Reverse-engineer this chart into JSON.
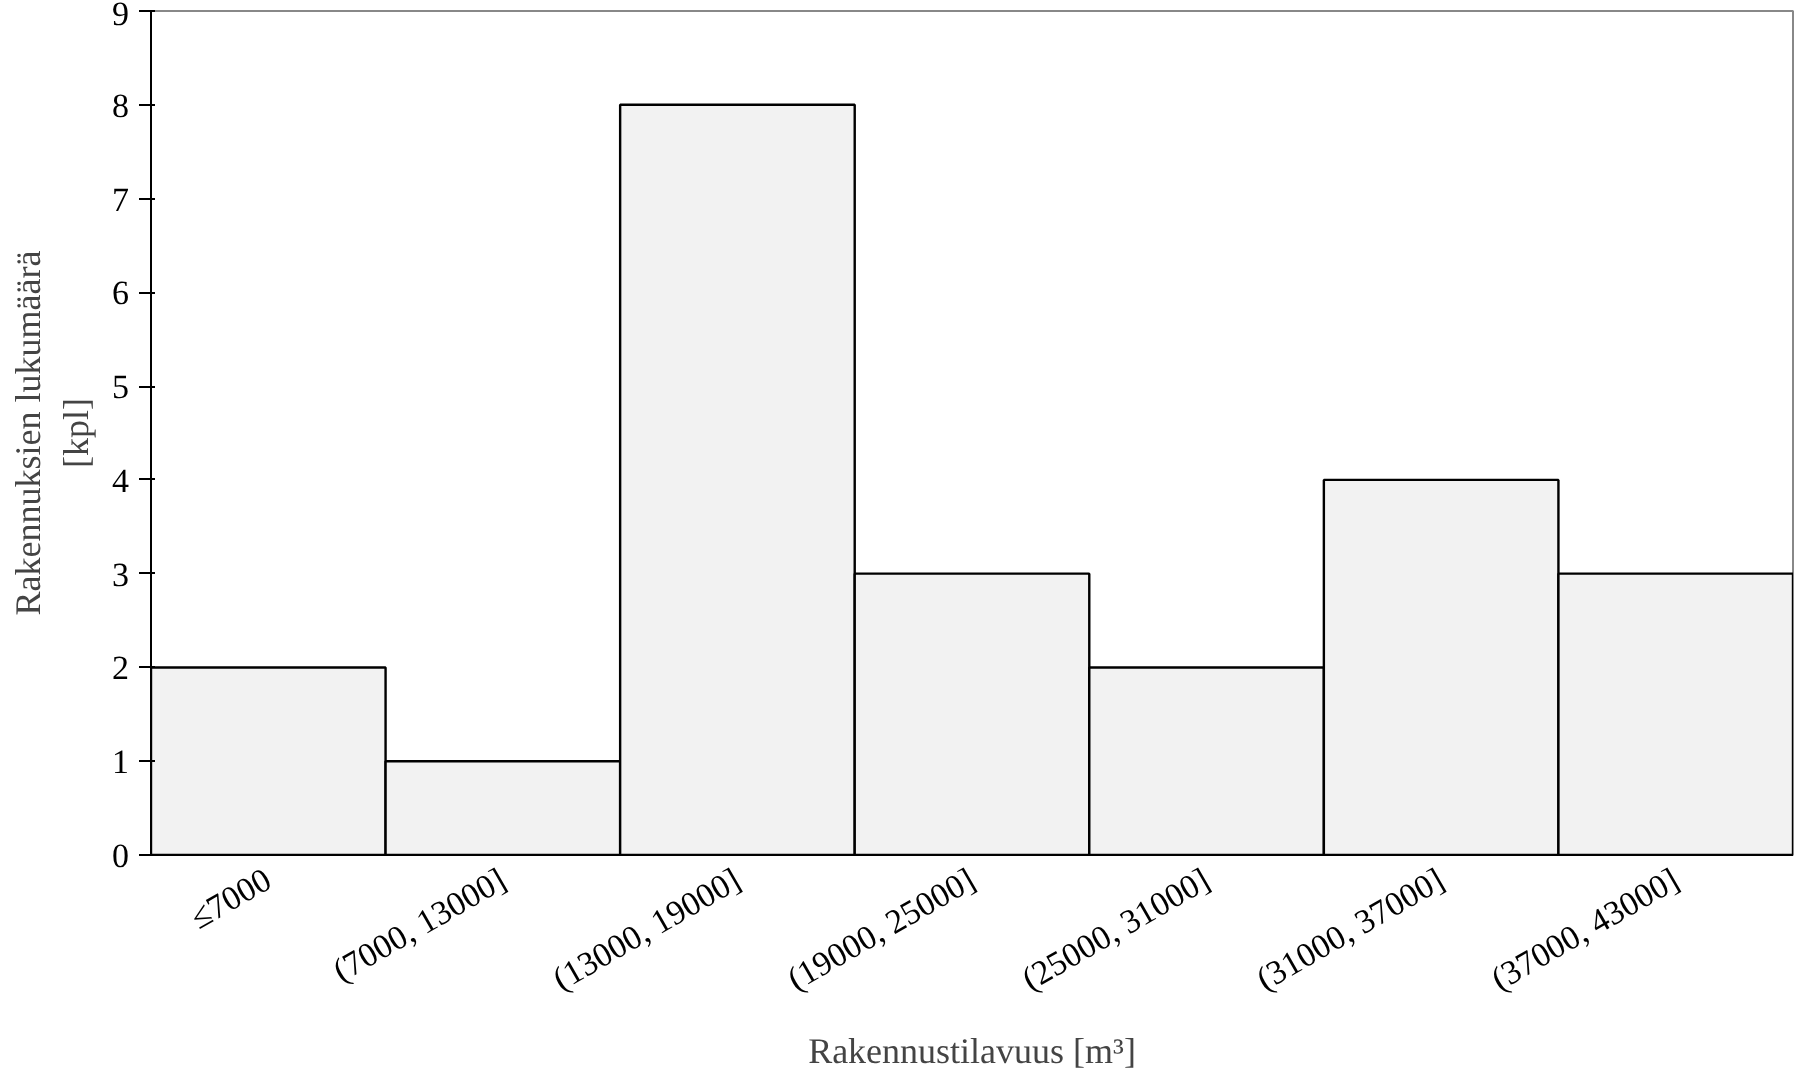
{
  "chart_data": {
    "type": "bar",
    "xlabel": "Rakennustilavuus [m³]",
    "ylabel": "Rakennuksien lukumäärä\n[kpl]",
    "categories": [
      "≤7000",
      "(7000, 13000]",
      "(13000, 19000]",
      "(19000, 25000]",
      "(25000, 31000]",
      "(31000, 37000]",
      "(37000, 43000]"
    ],
    "values": [
      2,
      1,
      8,
      3,
      2,
      4,
      3
    ],
    "color": "#f2f2f2",
    "ylim": [
      0,
      9
    ],
    "yticks": [
      0,
      1,
      2,
      3,
      4,
      5,
      6,
      7,
      8,
      9
    ],
    "grid": false
  }
}
